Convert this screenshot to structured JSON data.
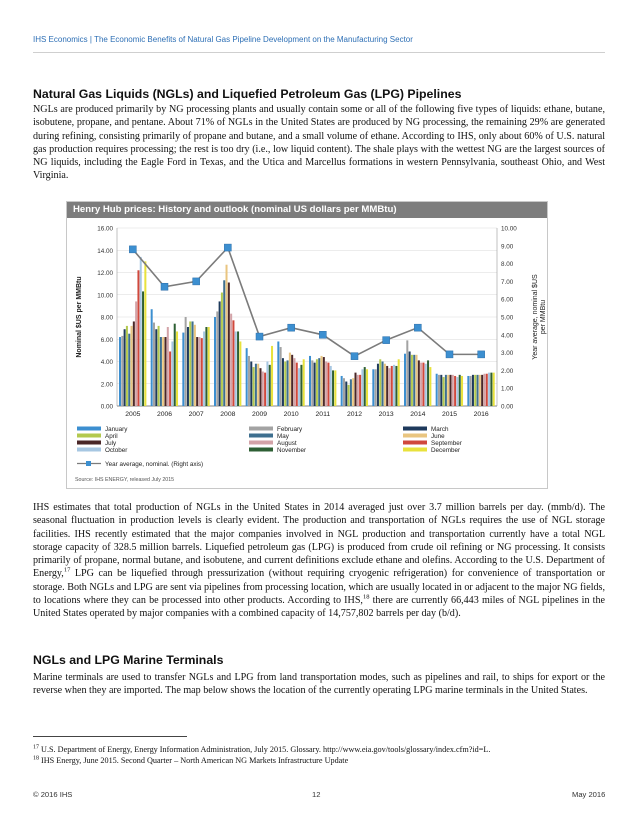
{
  "header": {
    "text": "IHS Economics | The Economic Benefits of Natural Gas Pipeline Development on the Manufacturing Sector"
  },
  "section1": {
    "heading": "Natural Gas Liquids (NGLs) and Liquefied Petroleum Gas (LPG) Pipelines",
    "paragraph": "NGLs are produced primarily by NG processing plants and usually contain some or all of the following five types of liquids: ethane, butane, isobutene, propane, and pentane. About 71% of NGLs in the United States are produced by NG processing, the remaining 29% are generated during refining, consisting primarily of propane and butane, and a small volume of ethane. According to IHS, only about 60% of U.S. natural gas production requires processing; the rest is too dry (i.e., low liquid content). The shale plays with the wettest NG are the largest sources of NG liquids, including the Eagle Ford in Texas, and the Utica and Marcellus formations in western Pennsylvania, southeast Ohio, and West Virginia."
  },
  "chart_data": {
    "type": "bar",
    "title": "Henry Hub prices: History and outlook (nominal US dollars per MMBtu)",
    "ylabel": "Nominal $US per MMBtu",
    "y2label": "Year average, nominal $US per MMBtu",
    "source": "Source: IHS ENERGY, released July 2015",
    "ylim": [
      0,
      16
    ],
    "y2lim": [
      0,
      10
    ],
    "yticks": [
      "0.00",
      "2.00",
      "4.00",
      "6.00",
      "8.00",
      "10.00",
      "12.00",
      "14.00",
      "16.00"
    ],
    "y2ticks": [
      "0.00",
      "1.00",
      "2.00",
      "3.00",
      "4.00",
      "5.00",
      "6.00",
      "7.00",
      "8.00",
      "9.00",
      "10.00"
    ],
    "categories": [
      "2005",
      "2006",
      "2007",
      "2008",
      "2009",
      "2010",
      "2011",
      "2012",
      "2013",
      "2014",
      "2015",
      "2016"
    ],
    "months": [
      "January",
      "February",
      "March",
      "April",
      "May",
      "June",
      "July",
      "August",
      "September",
      "October",
      "November",
      "December"
    ],
    "month_colors": [
      "#3c8fd0",
      "#a3a3a3",
      "#1e3a5c",
      "#b3c94f",
      "#3e6f8f",
      "#e9c580",
      "#4a2727",
      "#d3a3a8",
      "#d0483c",
      "#a7c7e2",
      "#2e5f34",
      "#e8e23c"
    ],
    "legend": [
      "January",
      "February",
      "March",
      "April",
      "May",
      "June",
      "July",
      "August",
      "September",
      "October",
      "November",
      "December",
      "Year average, nominal. (Right axis)"
    ],
    "monthly": [
      [
        6.2,
        6.3,
        6.9,
        7.2,
        6.5,
        7.2,
        7.6,
        9.4,
        12.2,
        13.4,
        10.3,
        13.0
      ],
      [
        8.7,
        7.5,
        6.9,
        7.2,
        6.2,
        6.2,
        6.2,
        7.1,
        4.9,
        5.8,
        7.4,
        6.7
      ],
      [
        6.6,
        8.0,
        7.1,
        7.6,
        7.6,
        7.3,
        6.2,
        6.2,
        6.1,
        6.7,
        7.1,
        7.1
      ],
      [
        8.0,
        8.5,
        9.4,
        10.2,
        11.3,
        12.7,
        11.1,
        8.3,
        7.7,
        6.7,
        6.7,
        5.8
      ],
      [
        5.2,
        4.5,
        4.0,
        3.5,
        3.8,
        3.8,
        3.4,
        3.1,
        3.0,
        4.0,
        3.7,
        5.4
      ],
      [
        5.8,
        5.3,
        4.3,
        4.0,
        4.1,
        4.8,
        4.6,
        4.3,
        3.9,
        3.4,
        3.7,
        4.2
      ],
      [
        4.5,
        4.1,
        3.9,
        4.2,
        4.3,
        4.5,
        4.4,
        4.0,
        3.9,
        3.6,
        3.2,
        3.2
      ],
      [
        2.7,
        2.5,
        2.2,
        1.9,
        2.4,
        2.5,
        3.0,
        2.8,
        2.8,
        3.3,
        3.5,
        3.3
      ],
      [
        3.3,
        3.3,
        3.8,
        4.2,
        4.0,
        3.8,
        3.6,
        3.4,
        3.6,
        3.7,
        3.6,
        4.2
      ],
      [
        4.7,
        5.9,
        4.9,
        4.6,
        4.6,
        4.6,
        4.1,
        3.9,
        3.9,
        3.8,
        4.1,
        3.5
      ],
      [
        2.9,
        2.8,
        2.8,
        2.6,
        2.8,
        2.8,
        2.8,
        2.8,
        2.7,
        2.6,
        2.8,
        2.7
      ],
      [
        2.7,
        2.7,
        2.8,
        2.8,
        2.8,
        2.8,
        2.8,
        2.9,
        2.9,
        3.0,
        3.0,
        3.0
      ]
    ],
    "year_average": [
      8.8,
      6.7,
      7.0,
      8.9,
      3.9,
      4.4,
      4.0,
      2.8,
      3.7,
      4.4,
      2.9,
      2.9
    ]
  },
  "section2": {
    "p1": "IHS estimates that total production of NGLs in the United States in 2014 averaged just over 3.7 million barrels per day. (mmb/d). The seasonal fluctuation in production levels is clearly evident. The production and transportation of NGLs requires the use of NGL storage facilities. IHS recently estimated that the major companies involved in NGL production and transportation currently have a total NGL storage capacity of 328.5 million barrels. Liquefied petroleum gas (LPG) is produced from crude oil refining or NG processing. It consists primarily of propane, normal butane, and isobutene, and current definitions exclude ethane and olefins. According to the U.S. Department of Energy,",
    "ref17": "17",
    "p2": " LPG can be liquefied through pressurization (without requiring cryogenic refrigeration) for convenience of transportation or storage. Both NGLs and LPG are sent via pipelines from processing location, which are usually located in or adjacent to the major NG fields, to locations where they can be processed into other products. According to IHS,",
    "ref18": "18",
    "p3": " there are currently 66,443 miles of NGL pipelines in the United States operated by major companies with a combined capacity of 14,757,802 barrels per day (b/d)."
  },
  "section3": {
    "heading": "NGLs and LPG Marine Terminals",
    "paragraph": "Marine terminals are used to transfer NGLs and LPG from land transportation modes, such as pipelines and rail, to ships for export or the reverse when they are imported. The map below shows the location of the currently operating LPG marine terminals in the United States."
  },
  "footnotes": [
    {
      "num": "17",
      "text": " U.S. Department of Energy, Energy Information Administration, July 2015. Glossary. http://www.eia.gov/tools/glossary/index.cfm?id=L."
    },
    {
      "num": "18",
      "text": " IHS Energy, June 2015. Second Quarter – North American NG Markets Infrastructure Update"
    }
  ],
  "footer": {
    "left": "© 2016 IHS",
    "center": "12",
    "right": "May 2016"
  }
}
